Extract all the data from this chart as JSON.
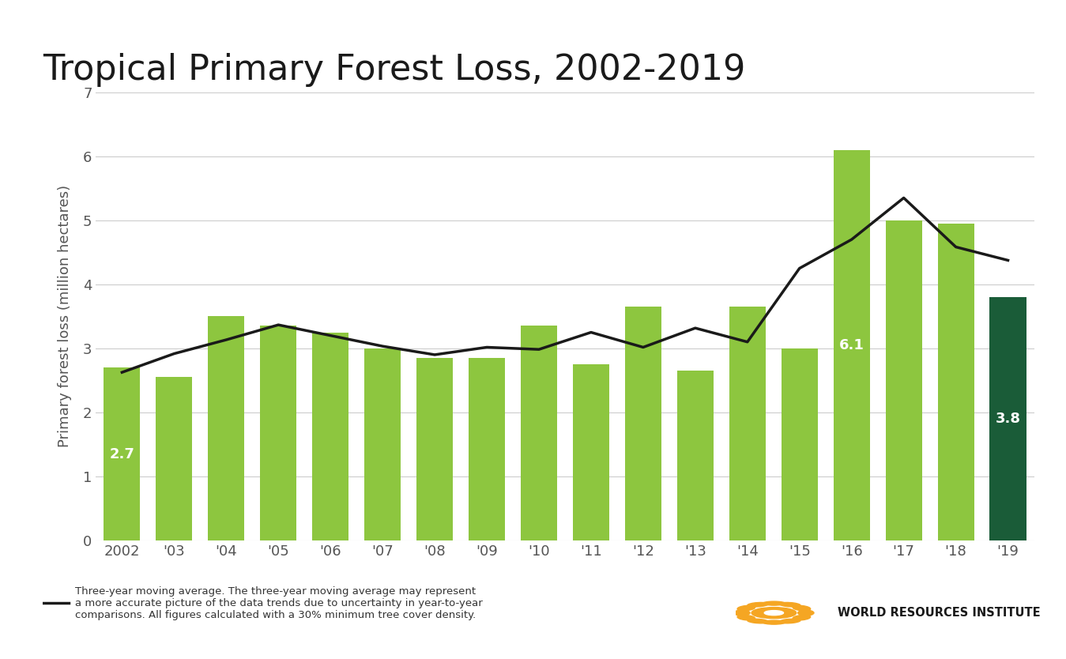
{
  "title": "Tropical Primary Forest Loss, 2002-2019",
  "ylabel": "Primary forest loss (million hectares)",
  "years": [
    2002,
    2003,
    2004,
    2005,
    2006,
    2007,
    2008,
    2009,
    2010,
    2011,
    2012,
    2013,
    2014,
    2015,
    2016,
    2017,
    2018,
    2019
  ],
  "x_labels": [
    "2002",
    "'03",
    "'04",
    "'05",
    "'06",
    "'07",
    "'08",
    "'09",
    "'10",
    "'11",
    "'12",
    "'13",
    "'14",
    "'15",
    "'16",
    "'17",
    "'18",
    "'19"
  ],
  "values": [
    2.7,
    2.55,
    3.5,
    3.35,
    3.25,
    3.0,
    2.85,
    2.85,
    3.35,
    2.75,
    3.65,
    2.65,
    3.65,
    3.0,
    6.1,
    5.0,
    4.95,
    3.8
  ],
  "bar_color_default": "#8dc63f",
  "bar_color_highlight": "#1a5c38",
  "highlight_year": 2019,
  "annotate_years": [
    2002,
    2016,
    2019
  ],
  "annotate_values": [
    2.7,
    6.1,
    3.8
  ],
  "line_color": "#1a1a1a",
  "ylim": [
    0,
    7
  ],
  "yticks": [
    0,
    1,
    2,
    3,
    4,
    5,
    6,
    7
  ],
  "title_fontsize": 32,
  "axis_fontsize": 13,
  "tick_fontsize": 13,
  "annotation_fontsize": 13,
  "legend_text": "Three-year moving average. The three-year moving average may represent\na more accurate picture of the data trends due to uncertainty in year-to-year\ncomparisons. All figures calculated with a 30% minimum tree cover density.",
  "background_color": "#ffffff",
  "grid_color": "#cccccc"
}
